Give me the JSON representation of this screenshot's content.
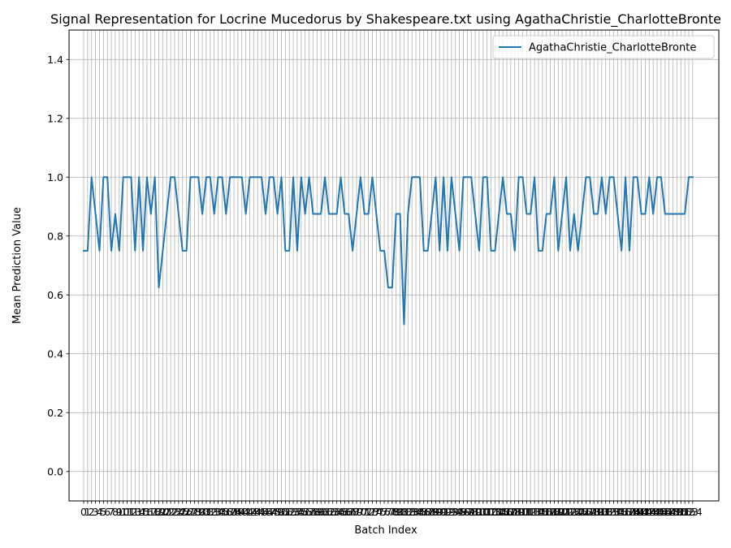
{
  "chart_data": {
    "type": "line",
    "title": "Signal Representation for Locrine Mucedorus by Shakespeare.txt using AgathaChristie_CharlotteBronte",
    "xlabel": "Batch Index",
    "ylabel": "Mean Prediction Value",
    "xlim": [
      0,
      153
    ],
    "ylim": [
      -0.1,
      1.5
    ],
    "yticks": [
      "0.0",
      "0.2",
      "0.4",
      "0.6",
      "0.8",
      "1.0",
      "1.2",
      "1.4"
    ],
    "ytick_values": [
      0.0,
      0.2,
      0.4,
      0.6,
      0.8,
      1.0,
      1.2,
      1.4
    ],
    "grid": true,
    "legend_position": "upper right",
    "series": [
      {
        "name": "AgathaChristie_CharlotteBronte",
        "color": "#1f77b4",
        "values": [
          0.75,
          0.75,
          1.0,
          0.875,
          0.75,
          1.0,
          1.0,
          0.75,
          0.875,
          0.75,
          1.0,
          1.0,
          1.0,
          0.75,
          1.0,
          0.75,
          1.0,
          0.875,
          1.0,
          0.625,
          0.75,
          0.875,
          1.0,
          1.0,
          0.875,
          0.75,
          0.75,
          1.0,
          1.0,
          1.0,
          0.875,
          1.0,
          1.0,
          0.875,
          1.0,
          1.0,
          0.875,
          1.0,
          1.0,
          1.0,
          1.0,
          0.875,
          1.0,
          1.0,
          1.0,
          1.0,
          0.875,
          1.0,
          1.0,
          0.875,
          1.0,
          0.75,
          0.75,
          1.0,
          0.75,
          1.0,
          0.875,
          1.0,
          0.875,
          0.875,
          0.875,
          1.0,
          0.875,
          0.875,
          0.875,
          1.0,
          0.875,
          0.875,
          0.75,
          0.875,
          1.0,
          0.875,
          0.875,
          1.0,
          0.875,
          0.75,
          0.75,
          0.625,
          0.625,
          0.875,
          0.875,
          0.5,
          0.875,
          1.0,
          1.0,
          1.0,
          0.75,
          0.75,
          0.875,
          1.0,
          0.75,
          1.0,
          0.75,
          1.0,
          0.875,
          0.75,
          1.0,
          1.0,
          1.0,
          0.875,
          0.75,
          1.0,
          1.0,
          0.75,
          0.75,
          0.875,
          1.0,
          0.875,
          0.875,
          0.75,
          1.0,
          1.0,
          0.875,
          0.875,
          1.0,
          0.75,
          0.75,
          0.875,
          0.875,
          1.0,
          0.75,
          0.875,
          1.0,
          0.75,
          0.875,
          0.75,
          0.875,
          1.0,
          1.0,
          0.875,
          0.875,
          1.0,
          0.875,
          1.0,
          1.0,
          0.875,
          0.75,
          1.0,
          0.75,
          1.0,
          1.0,
          0.875,
          0.875,
          1.0,
          0.875,
          1.0,
          1.0,
          0.875,
          0.875,
          0.875,
          0.875,
          0.875,
          0.875,
          1.0,
          1.0
        ]
      }
    ]
  }
}
